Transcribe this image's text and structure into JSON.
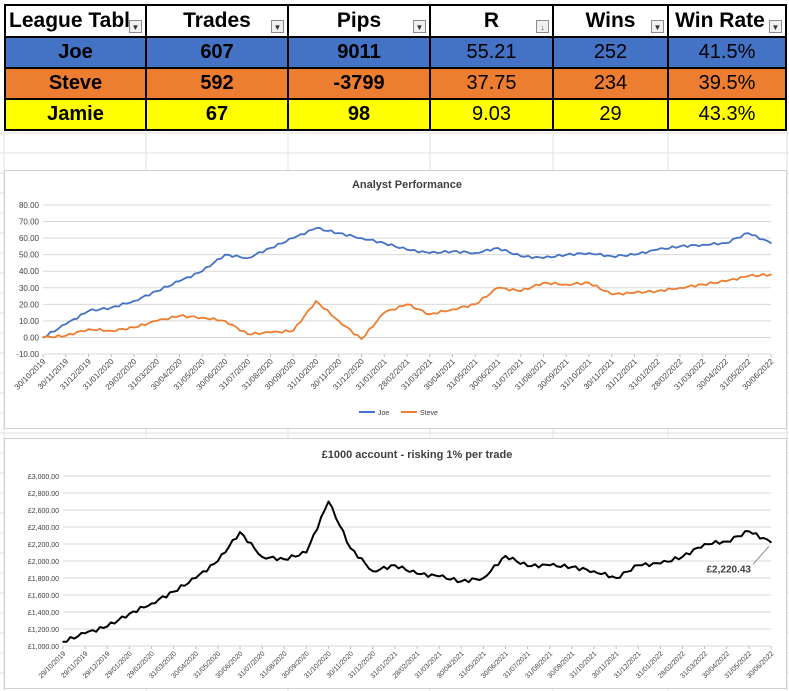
{
  "league_table": {
    "headers": [
      "League Tabl",
      "Trades",
      "Pips",
      "R",
      "Wins",
      "Win Rate"
    ],
    "rows": [
      {
        "name": "Joe",
        "trades": "607",
        "pips": "9011",
        "r": "55.21",
        "wins": "252",
        "win_rate": "41.5%",
        "bg": "#4472c4"
      },
      {
        "name": "Steve",
        "trades": "592",
        "pips": "-3799",
        "r": "37.75",
        "wins": "234",
        "win_rate": "39.5%",
        "bg": "#ed7d31"
      },
      {
        "name": "Jamie",
        "trades": "67",
        "pips": "98",
        "r": "9.03",
        "wins": "29",
        "win_rate": "43.3%",
        "bg": "#ffff00"
      }
    ]
  },
  "chart_data": [
    {
      "type": "line",
      "title": "Analyst Performance",
      "xlabel": "",
      "ylabel": "",
      "ylim": [
        -10,
        80
      ],
      "yticks": [
        "-10.00",
        "0.00",
        "10.00",
        "20.00",
        "30.00",
        "40.00",
        "50.00",
        "60.00",
        "70.00",
        "80.00"
      ],
      "x": [
        "30/10/2019",
        "30/11/2019",
        "31/12/2019",
        "31/01/2020",
        "29/02/2020",
        "31/03/2020",
        "30/04/2020",
        "31/05/2020",
        "30/06/2020",
        "31/07/2020",
        "31/08/2020",
        "30/09/2020",
        "31/10/2020",
        "30/11/2020",
        "31/12/2020",
        "31/01/2021",
        "28/02/2021",
        "31/03/2021",
        "30/04/2021",
        "31/05/2021",
        "30/06/2021",
        "31/07/2021",
        "31/08/2021",
        "30/09/2021",
        "31/10/2021",
        "30/11/2021",
        "31/12/2021",
        "31/01/2022",
        "28/02/2022",
        "31/03/2022",
        "30/04/2022",
        "31/05/2022",
        "30/06/2022"
      ],
      "grid": true,
      "legend": "bottom",
      "series": [
        {
          "name": "Joe",
          "color": "#4472c4",
          "values": [
            0,
            8,
            16,
            18,
            22,
            28,
            34,
            40,
            50,
            48,
            54,
            60,
            66,
            63,
            60,
            57,
            53,
            51,
            52,
            51,
            54,
            49,
            48,
            50,
            51,
            49,
            50,
            53,
            55,
            56,
            57,
            63,
            57
          ]
        },
        {
          "name": "Steve",
          "color": "#ed7d31",
          "values": [
            0,
            1,
            5,
            4,
            6,
            10,
            13,
            12,
            10,
            2,
            3,
            4,
            22,
            10,
            -1,
            15,
            20,
            14,
            17,
            20,
            30,
            28,
            33,
            32,
            33,
            26,
            27,
            28,
            30,
            32,
            34,
            37,
            38
          ]
        }
      ]
    },
    {
      "type": "line",
      "title": "£1000 account - risking 1% per trade",
      "xlabel": "",
      "ylabel": "",
      "ylim": [
        1000,
        3000
      ],
      "yticks": [
        "£1,000.00",
        "£1,200.00",
        "£1,400.00",
        "£1,600.00",
        "£1,800.00",
        "£2,000.00",
        "£2,200.00",
        "£2,400.00",
        "£2,600.00",
        "£2,800.00",
        "£3,000.00"
      ],
      "x": [
        "29/10/2019",
        "29/11/2019",
        "29/12/2019",
        "29/01/2020",
        "29/02/2020",
        "31/03/2020",
        "30/04/2020",
        "31/05/2020",
        "30/06/2020",
        "31/07/2020",
        "31/08/2020",
        "30/09/2020",
        "31/10/2020",
        "30/11/2020",
        "31/12/2020",
        "31/01/2021",
        "28/02/2021",
        "31/03/2021",
        "30/04/2021",
        "31/05/2021",
        "30/06/2021",
        "31/07/2021",
        "31/08/2021",
        "30/09/2021",
        "31/10/2021",
        "30/11/2021",
        "31/12/2021",
        "31/01/2022",
        "28/02/2022",
        "31/03/2022",
        "30/04/2022",
        "31/05/2022",
        "30/06/2022"
      ],
      "grid": true,
      "series": [
        {
          "name": "",
          "color": "#000000",
          "values": [
            1050,
            1150,
            1230,
            1380,
            1500,
            1640,
            1800,
            2000,
            2340,
            2050,
            2020,
            2100,
            2700,
            2150,
            1880,
            1950,
            1850,
            1820,
            1760,
            1800,
            2060,
            1940,
            1950,
            1930,
            1880,
            1800,
            1950,
            1970,
            2050,
            2200,
            2230,
            2350,
            2220
          ]
        }
      ],
      "data_label": "£2,220.43"
    }
  ]
}
